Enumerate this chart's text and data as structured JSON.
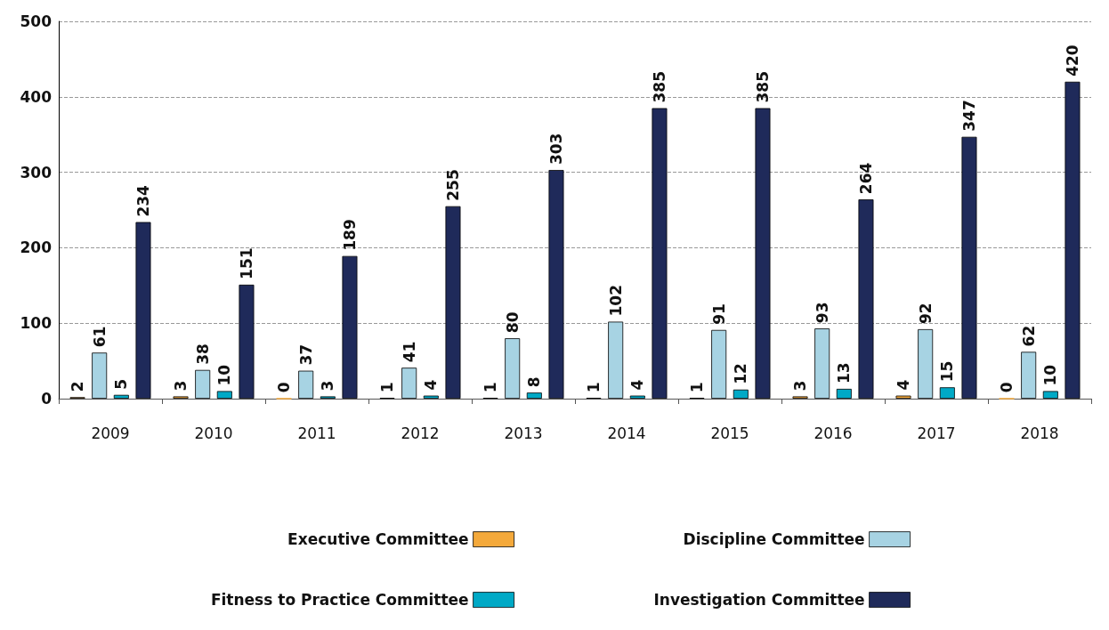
{
  "chart_data": {
    "type": "bar",
    "categories": [
      "2009",
      "2010",
      "2011",
      "2012",
      "2013",
      "2014",
      "2015",
      "2016",
      "2017",
      "2018"
    ],
    "series": [
      {
        "name": "Executive Committee",
        "color": "#f4a93b",
        "values": [
          2,
          3,
          0,
          1,
          1,
          1,
          1,
          3,
          4,
          0
        ]
      },
      {
        "name": "Discipline Committee",
        "color": "#a7d3e3",
        "values": [
          61,
          38,
          37,
          41,
          80,
          102,
          91,
          93,
          92,
          62
        ]
      },
      {
        "name": "Fitness to Practice Committee",
        "color": "#00a9c6",
        "values": [
          5,
          10,
          3,
          4,
          8,
          4,
          12,
          13,
          15,
          10
        ]
      },
      {
        "name": "Investigation Committee",
        "color": "#1f2a5a",
        "values": [
          234,
          151,
          189,
          255,
          303,
          385,
          385,
          264,
          347,
          420
        ]
      }
    ],
    "ylim": [
      0,
      500
    ],
    "yticks": [
      0,
      100,
      200,
      300,
      400,
      500
    ],
    "grid": "y",
    "legend": "bottom",
    "data_labels": true
  }
}
